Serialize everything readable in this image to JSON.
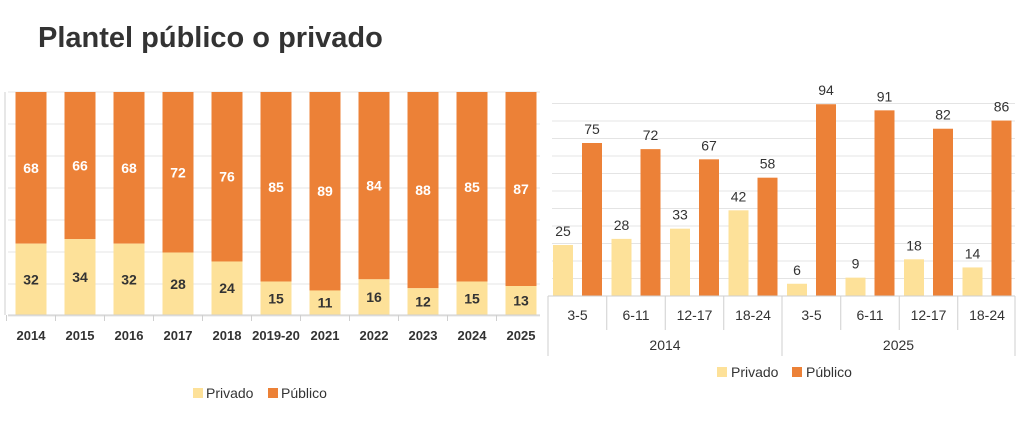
{
  "title": "Plantel público o privado",
  "colors": {
    "privado": "#fde199",
    "publico": "#ec8137",
    "grid": "#e4e4e4",
    "axis": "#cfcfcf",
    "text": "#333333",
    "label_on_bar": "#ffffff"
  },
  "chart_data": [
    {
      "type": "bar",
      "stacked": true,
      "title": "",
      "xlabel": "",
      "ylabel": "",
      "categories": [
        "2014",
        "2015",
        "2016",
        "2017",
        "2018",
        "2019-20",
        "2021",
        "2022",
        "2023",
        "2024",
        "2025"
      ],
      "series": [
        {
          "name": "Privado",
          "values": [
            32,
            34,
            32,
            28,
            24,
            15,
            11,
            16,
            12,
            15,
            13
          ]
        },
        {
          "name": "Público",
          "values": [
            68,
            66,
            68,
            72,
            76,
            85,
            89,
            84,
            88,
            85,
            87
          ]
        }
      ],
      "ylim": [
        0,
        100
      ],
      "grid": true,
      "legend": "bottom"
    },
    {
      "type": "bar",
      "stacked": false,
      "title": "",
      "xlabel": "",
      "ylabel": "",
      "categories": [
        "3-5",
        "6-11",
        "12-17",
        "18-24",
        "3-5",
        "6-11",
        "12-17",
        "18-24"
      ],
      "groups": [
        {
          "label": "2014",
          "categories": [
            "3-5",
            "6-11",
            "12-17",
            "18-24"
          ]
        },
        {
          "label": "2025",
          "categories": [
            "3-5",
            "6-11",
            "12-17",
            "18-24"
          ]
        }
      ],
      "series": [
        {
          "name": "Privado",
          "values": [
            25,
            28,
            33,
            42,
            6,
            9,
            18,
            14
          ]
        },
        {
          "name": "Público",
          "values": [
            75,
            72,
            67,
            58,
            94,
            91,
            82,
            86
          ]
        }
      ],
      "ylim": [
        0,
        100
      ],
      "grid": true,
      "legend": "bottom"
    }
  ]
}
